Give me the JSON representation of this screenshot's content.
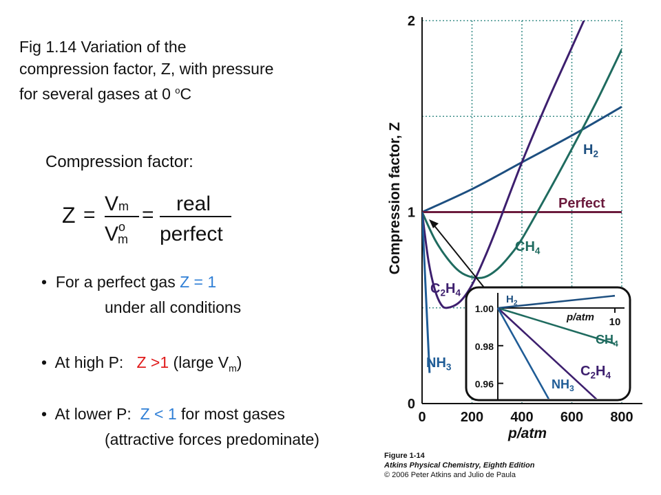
{
  "caption": {
    "line1": "Fig 1.14  Variation of the",
    "line2": "compression factor, Z, with pressure",
    "line3_pre": "for several gases at 0 ",
    "line3_sup": "o",
    "line3_post": "C"
  },
  "compression_label": "Compression factor:",
  "equation": {
    "lhs": "Z",
    "v_top": "V",
    "v_top_sub": "m",
    "v_bottom": "V",
    "v_bottom_sub": "m",
    "v_bottom_sup": "o",
    "real": "real",
    "perfect": "perfect",
    "eq": "="
  },
  "bullets": {
    "b1_pre": "For a perfect gas ",
    "b1_hl": "Z = 1",
    "b1_cont": "under all conditions",
    "b2_pre": "At high P:   ",
    "b2_hl": "Z >1",
    "b2_post_pre": " (large V",
    "b2_post_sub": "m",
    "b2_post_end": ")",
    "b3_pre": "At lower P:  ",
    "b3_hl": "Z < 1",
    "b3_post": " for most gases",
    "b3_cont": "(attractive forces predominate)",
    "marker": "•"
  },
  "credit": {
    "figure": "Figure 1-14",
    "book": "Atkins Physical Chemistry, Eighth Edition",
    "copyright": "© 2006 Peter Atkins and Julio de Paula"
  },
  "colors": {
    "H2": "#1d4f80",
    "Perfect": "#6b1a3c",
    "CH4": "#1f6b5f",
    "C2H4": "#3d1f6e",
    "NH3": "#1f5c96",
    "grid": "#3d8f8a",
    "blue_text": "#2f7fd6",
    "red_text": "#e01b1b"
  },
  "chart_data": [
    {
      "type": "line",
      "xlabel": "p/atm",
      "ylabel": "Compression factor, Z",
      "xlim": [
        0,
        800
      ],
      "ylim": [
        0,
        2
      ],
      "x_ticks": [
        0,
        200,
        400,
        600,
        800
      ],
      "y_ticks": [
        0,
        1,
        2
      ],
      "grid": true,
      "series": [
        {
          "name": "H2",
          "x": [
            0,
            200,
            400,
            600,
            800
          ],
          "y": [
            1.0,
            1.12,
            1.26,
            1.4,
            1.55
          ]
        },
        {
          "name": "Perfect",
          "x": [
            0,
            800
          ],
          "y": [
            1.0,
            1.0
          ]
        },
        {
          "name": "CH4",
          "x": [
            0,
            50,
            100,
            150,
            200,
            250,
            300,
            350,
            400,
            500,
            600,
            700,
            800
          ],
          "y": [
            1.0,
            0.86,
            0.76,
            0.69,
            0.66,
            0.66,
            0.7,
            0.77,
            0.86,
            1.09,
            1.33,
            1.58,
            1.85
          ]
        },
        {
          "name": "C2H4",
          "x": [
            0,
            25,
            50,
            75,
            100,
            150,
            200,
            250,
            300,
            400,
            500,
            600,
            700,
            760
          ],
          "y": [
            1.0,
            0.75,
            0.6,
            0.52,
            0.5,
            0.53,
            0.62,
            0.76,
            0.92,
            1.26,
            1.57,
            1.86,
            2.15,
            2.33
          ]
        },
        {
          "name": "NH3",
          "x": [
            0,
            10,
            20,
            30
          ],
          "y": [
            1.0,
            0.72,
            0.44,
            0.16
          ]
        }
      ]
    },
    {
      "type": "line",
      "title": "",
      "xlabel": "p/atm",
      "xlim": [
        0,
        10
      ],
      "ylim": [
        0.95,
        1.0
      ],
      "x_ticks": [
        10
      ],
      "y_ticks": [
        1.0,
        0.98,
        0.96
      ],
      "y_tick_labels": [
        "1.00",
        "0.98",
        "0.96"
      ],
      "series": [
        {
          "name": "H2",
          "x": [
            0,
            10
          ],
          "y": [
            1.0,
            1.0065
          ]
        },
        {
          "name": "CH4",
          "x": [
            0,
            10
          ],
          "y": [
            1.0,
            0.981
          ]
        },
        {
          "name": "C2H4",
          "x": [
            0,
            8.7
          ],
          "y": [
            1.0,
            0.95
          ]
        },
        {
          "name": "NH3",
          "x": [
            0,
            4.5
          ],
          "y": [
            1.0,
            0.95
          ]
        }
      ],
      "series_labels": [
        "H2",
        "CH4",
        "C2H4",
        "NH3"
      ]
    }
  ]
}
